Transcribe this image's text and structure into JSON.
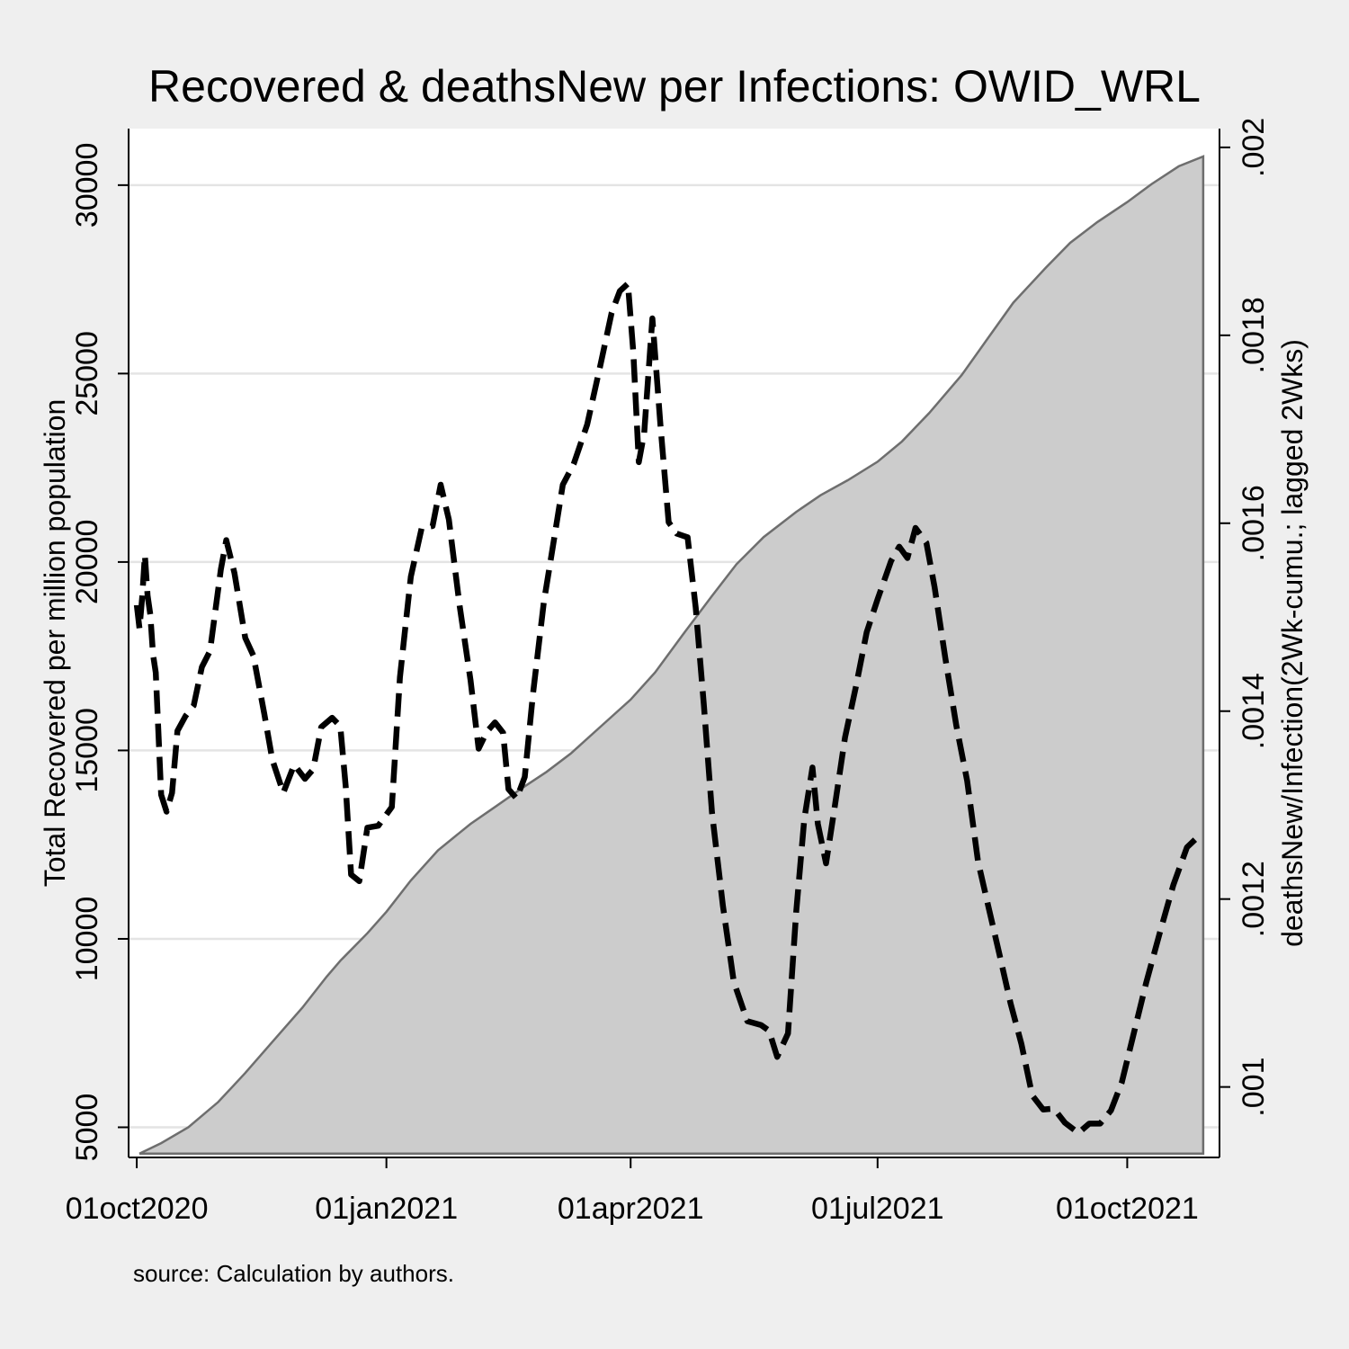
{
  "chart_data": {
    "type": "area",
    "title": "Recovered & deathsNew per Infections: OWID_WRL",
    "note": "source: Calculation by authors.",
    "y_left": {
      "label": "Total Recovered per million population",
      "range": [
        4200,
        31500
      ],
      "ticks": [
        5000,
        10000,
        15000,
        20000,
        25000,
        30000
      ],
      "tick_labels": [
        "5000",
        "10000",
        "15000",
        "20000",
        "25000",
        "30000"
      ]
    },
    "y_right": {
      "label": "deathsNew/Infection(2Wk-cumu.; lagged 2Wks)",
      "range": [
        0.000925,
        0.00202
      ],
      "ticks": [
        0.001,
        0.0012,
        0.0014,
        0.0016,
        0.0018,
        0.002
      ],
      "tick_labels": [
        ".001",
        ".0012",
        ".0014",
        ".0016",
        ".0018",
        ".002"
      ]
    },
    "x": {
      "start": "2020-09-28",
      "end": "2021-11-04",
      "ticks": [
        "2020-10-01",
        "2021-01-01",
        "2021-04-01",
        "2021-07-01",
        "2021-10-01"
      ],
      "tick_labels": [
        "01oct2020",
        "01jan2021",
        "01apr2021",
        "01jul2021",
        "01oct2021"
      ]
    },
    "grid": true,
    "legend": "none",
    "series": [
      {
        "axis": "left",
        "style": "area",
        "fill": "#cccccc",
        "stroke": "#6e6e6e",
        "points": [
          [
            "2020-10-02",
            4300
          ],
          [
            "2020-10-10",
            4580
          ],
          [
            "2020-10-20",
            5000
          ],
          [
            "2020-10-31",
            5670
          ],
          [
            "2020-11-10",
            6440
          ],
          [
            "2020-11-20",
            7270
          ],
          [
            "2020-12-01",
            8170
          ],
          [
            "2020-12-10",
            9000
          ],
          [
            "2020-12-15",
            9420
          ],
          [
            "2020-12-25",
            10150
          ],
          [
            "2021-01-01",
            10720
          ],
          [
            "2021-01-10",
            11550
          ],
          [
            "2021-01-20",
            12350
          ],
          [
            "2021-02-01",
            13050
          ],
          [
            "2021-02-10",
            13500
          ],
          [
            "2021-02-20",
            14000
          ],
          [
            "2021-03-01",
            14430
          ],
          [
            "2021-03-10",
            14920
          ],
          [
            "2021-03-20",
            15570
          ],
          [
            "2021-04-01",
            16350
          ],
          [
            "2021-04-10",
            17070
          ],
          [
            "2021-04-20",
            18050
          ],
          [
            "2021-05-01",
            19100
          ],
          [
            "2021-05-10",
            19940
          ],
          [
            "2021-05-20",
            20660
          ],
          [
            "2021-06-01",
            21330
          ],
          [
            "2021-06-10",
            21770
          ],
          [
            "2021-06-20",
            22170
          ],
          [
            "2021-07-01",
            22660
          ],
          [
            "2021-07-10",
            23200
          ],
          [
            "2021-07-20",
            23950
          ],
          [
            "2021-08-01",
            24960
          ],
          [
            "2021-08-10",
            25870
          ],
          [
            "2021-08-20",
            26880
          ],
          [
            "2021-09-01",
            27810
          ],
          [
            "2021-09-10",
            28470
          ],
          [
            "2021-09-20",
            29020
          ],
          [
            "2021-10-01",
            29550
          ],
          [
            "2021-10-10",
            30030
          ],
          [
            "2021-10-20",
            30500
          ],
          [
            "2021-10-29",
            30760
          ]
        ]
      },
      {
        "axis": "right",
        "style": "dashed-line",
        "stroke": "#000000",
        "points": [
          [
            "2020-10-01",
            0.001513
          ],
          [
            "2020-10-02",
            0.001488
          ],
          [
            "2020-10-03",
            0.001521
          ],
          [
            "2020-10-04",
            0.001566
          ],
          [
            "2020-10-05",
            0.001523
          ],
          [
            "2020-10-06",
            0.001503
          ],
          [
            "2020-10-07",
            0.00146
          ],
          [
            "2020-10-08",
            0.001441
          ],
          [
            "2020-10-10",
            0.001311
          ],
          [
            "2020-10-12",
            0.001293
          ],
          [
            "2020-10-14",
            0.001313
          ],
          [
            "2020-10-16",
            0.001379
          ],
          [
            "2020-10-19",
            0.001395
          ],
          [
            "2020-10-22",
            0.001406
          ],
          [
            "2020-10-25",
            0.001447
          ],
          [
            "2020-10-28",
            0.001464
          ],
          [
            "2020-11-01",
            0.001551
          ],
          [
            "2020-11-03",
            0.001582
          ],
          [
            "2020-11-06",
            0.001547
          ],
          [
            "2020-11-10",
            0.001478
          ],
          [
            "2020-11-13",
            0.001459
          ],
          [
            "2020-11-17",
            0.001397
          ],
          [
            "2020-11-20",
            0.001348
          ],
          [
            "2020-11-24",
            0.001313
          ],
          [
            "2020-11-28",
            0.001343
          ],
          [
            "2020-12-02",
            0.001328
          ],
          [
            "2020-12-05",
            0.001338
          ],
          [
            "2020-12-08",
            0.001383
          ],
          [
            "2020-12-12",
            0.001393
          ],
          [
            "2020-12-15",
            0.001384
          ],
          [
            "2020-12-17",
            0.00132
          ],
          [
            "2020-12-19",
            0.001226
          ],
          [
            "2020-12-22",
            0.001219
          ],
          [
            "2020-12-25",
            0.001276
          ],
          [
            "2020-12-29",
            0.001278
          ],
          [
            "2021-01-03",
            0.001298
          ],
          [
            "2021-01-06",
            0.001436
          ],
          [
            "2021-01-10",
            0.001543
          ],
          [
            "2021-01-14",
            0.001595
          ],
          [
            "2021-01-18",
            0.001597
          ],
          [
            "2021-01-21",
            0.001641
          ],
          [
            "2021-01-24",
            0.001604
          ],
          [
            "2021-01-28",
            0.001512
          ],
          [
            "2021-02-01",
            0.001433
          ],
          [
            "2021-02-04",
            0.00136
          ],
          [
            "2021-02-07",
            0.001378
          ],
          [
            "2021-02-10",
            0.001388
          ],
          [
            "2021-02-13",
            0.001377
          ],
          [
            "2021-02-15",
            0.001317
          ],
          [
            "2021-02-18",
            0.001307
          ],
          [
            "2021-02-21",
            0.00133
          ],
          [
            "2021-02-24",
            0.001418
          ],
          [
            "2021-02-28",
            0.001516
          ],
          [
            "2021-03-03",
            0.001569
          ],
          [
            "2021-03-07",
            0.001641
          ],
          [
            "2021-03-11",
            0.001663
          ],
          [
            "2021-03-16",
            0.001705
          ],
          [
            "2021-03-21",
            0.00177
          ],
          [
            "2021-03-25",
            0.001824
          ],
          [
            "2021-03-28",
            0.001847
          ],
          [
            "2021-03-31",
            0.001855
          ],
          [
            "2021-04-02",
            0.001782
          ],
          [
            "2021-04-04",
            0.001665
          ],
          [
            "2021-04-06",
            0.001696
          ],
          [
            "2021-04-09",
            0.001818
          ],
          [
            "2021-04-12",
            0.001704
          ],
          [
            "2021-04-15",
            0.001601
          ],
          [
            "2021-04-18",
            0.001589
          ],
          [
            "2021-04-22",
            0.001585
          ],
          [
            "2021-04-25",
            0.00151
          ],
          [
            "2021-04-28",
            0.001406
          ],
          [
            "2021-05-01",
            0.001292
          ],
          [
            "2021-05-05",
            0.001193
          ],
          [
            "2021-05-09",
            0.001112
          ],
          [
            "2021-05-14",
            0.00107
          ],
          [
            "2021-05-19",
            0.001066
          ],
          [
            "2021-05-22",
            0.00106
          ],
          [
            "2021-05-25",
            0.001032
          ],
          [
            "2021-05-29",
            0.001057
          ],
          [
            "2021-06-01",
            0.001186
          ],
          [
            "2021-06-04",
            0.001285
          ],
          [
            "2021-06-07",
            0.00134
          ],
          [
            "2021-06-09",
            0.00128
          ],
          [
            "2021-06-12",
            0.001238
          ],
          [
            "2021-06-15",
            0.001294
          ],
          [
            "2021-06-19",
            0.001372
          ],
          [
            "2021-06-23",
            0.001426
          ],
          [
            "2021-06-27",
            0.001484
          ],
          [
            "2021-07-01",
            0.001519
          ],
          [
            "2021-07-06",
            0.00156
          ],
          [
            "2021-07-09",
            0.001575
          ],
          [
            "2021-07-12",
            0.001563
          ],
          [
            "2021-07-15",
            0.001595
          ],
          [
            "2021-07-19",
            0.001579
          ],
          [
            "2021-07-22",
            0.001532
          ],
          [
            "2021-07-26",
            0.001456
          ],
          [
            "2021-07-30",
            0.001385
          ],
          [
            "2021-08-03",
            0.001326
          ],
          [
            "2021-08-07",
            0.00124
          ],
          [
            "2021-08-11",
            0.00119
          ],
          [
            "2021-08-15",
            0.00114
          ],
          [
            "2021-08-19",
            0.001089
          ],
          [
            "2021-08-23",
            0.001046
          ],
          [
            "2021-08-27",
            0.000991
          ],
          [
            "2021-08-31",
            0.000976
          ],
          [
            "2021-09-04",
            0.000977
          ],
          [
            "2021-09-08",
            0.000962
          ],
          [
            "2021-09-13",
            0.000951
          ],
          [
            "2021-09-17",
            0.000961
          ],
          [
            "2021-09-21",
            0.000961
          ],
          [
            "2021-09-25",
            0.000975
          ],
          [
            "2021-09-29",
            0.001005
          ],
          [
            "2021-10-03",
            0.001052
          ],
          [
            "2021-10-08",
            0.001111
          ],
          [
            "2021-10-13",
            0.001164
          ],
          [
            "2021-10-18",
            0.001215
          ],
          [
            "2021-10-23",
            0.001255
          ],
          [
            "2021-10-27",
            0.001266
          ]
        ]
      }
    ]
  }
}
